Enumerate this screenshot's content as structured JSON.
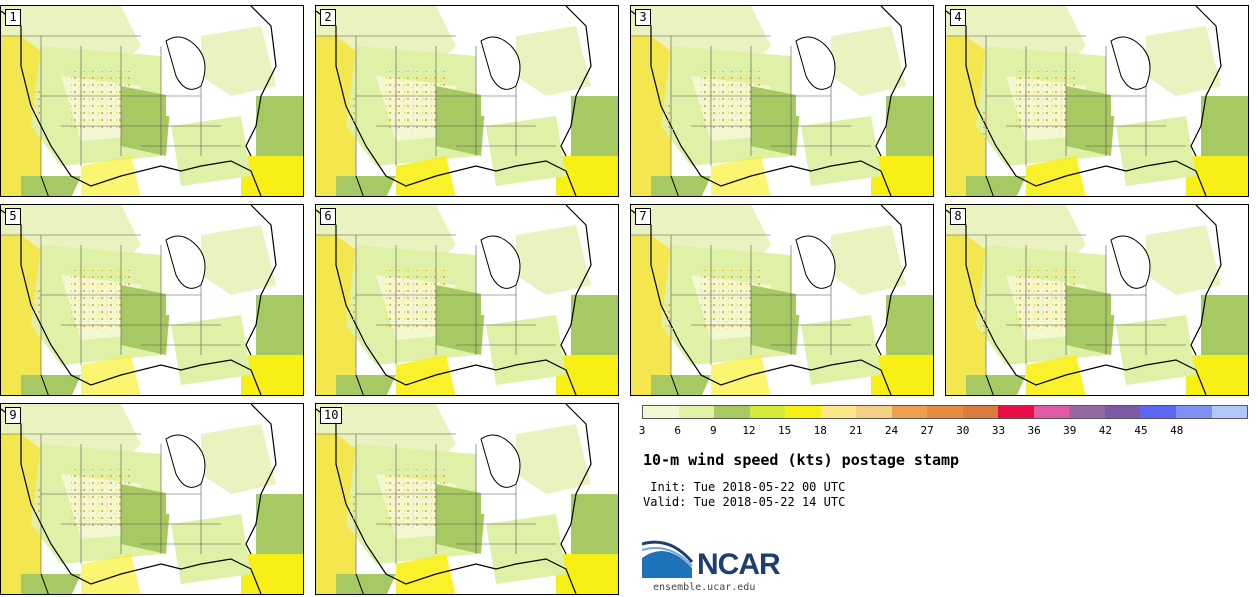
{
  "members": [
    "1",
    "2",
    "3",
    "4",
    "5",
    "6",
    "7",
    "8",
    "9",
    "10"
  ],
  "colorbar": {
    "colors": [
      "#f3f8d3",
      "#dff1a6",
      "#a7c964",
      "#d6ea3a",
      "#f8ef14",
      "#fbe68a",
      "#f3cf84",
      "#eca04c",
      "#e58a3e",
      "#dd7a3e",
      "#e80c47",
      "#e15aa4",
      "#9668a6",
      "#7d5aa8",
      "#5e67f5",
      "#7c91f3",
      "#b3c8f6"
    ],
    "ticks": [
      "3",
      "6",
      "9",
      "12",
      "15",
      "18",
      "21",
      "24",
      "27",
      "30",
      "33",
      "36",
      "39",
      "42",
      "45",
      "48"
    ]
  },
  "title": "10-m wind speed (kts) postage stamp",
  "init_line": " Init: Tue 2018-05-22 00 UTC",
  "valid_line": "Valid: Tue 2018-05-22 14 UTC",
  "logo": {
    "text": "NCAR",
    "url": "ensemble.ucar.edu"
  }
}
